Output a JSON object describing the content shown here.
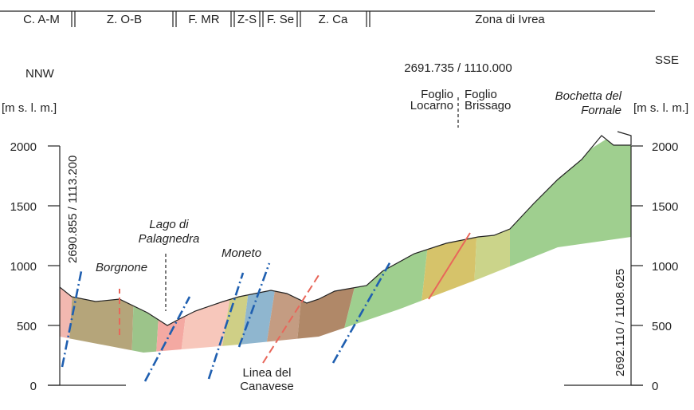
{
  "zones": [
    "C. A-M",
    "Z. O-B",
    "F. MR",
    "Z-S",
    "F. Se",
    "Z. Ca",
    "Zona di Ivrea"
  ],
  "direction_left": "NNW",
  "direction_right": "SSE",
  "axis_label_left": "[m s. l. m.]",
  "axis_label_right": "[m s. l. m.]",
  "ticks": [
    0,
    500,
    1000,
    1500,
    2000
  ],
  "coordinates_top": "2691.735 / 1110.000",
  "coordinates_left": "2690.855 / 1113.200",
  "coordinates_right": "2692.110 / 1108.625",
  "sheet_left": [
    "Foglio",
    "Locarno"
  ],
  "sheet_right": [
    "Foglio",
    "Brissago"
  ],
  "places": {
    "borgnone": "Borgnone",
    "lago": [
      "Lago di",
      "Palagnedra"
    ],
    "moneto": "Moneto",
    "bochetta": [
      "Bochetta del",
      "Fornale"
    ],
    "canavese": [
      "Linea del",
      "Canavese"
    ]
  }
}
